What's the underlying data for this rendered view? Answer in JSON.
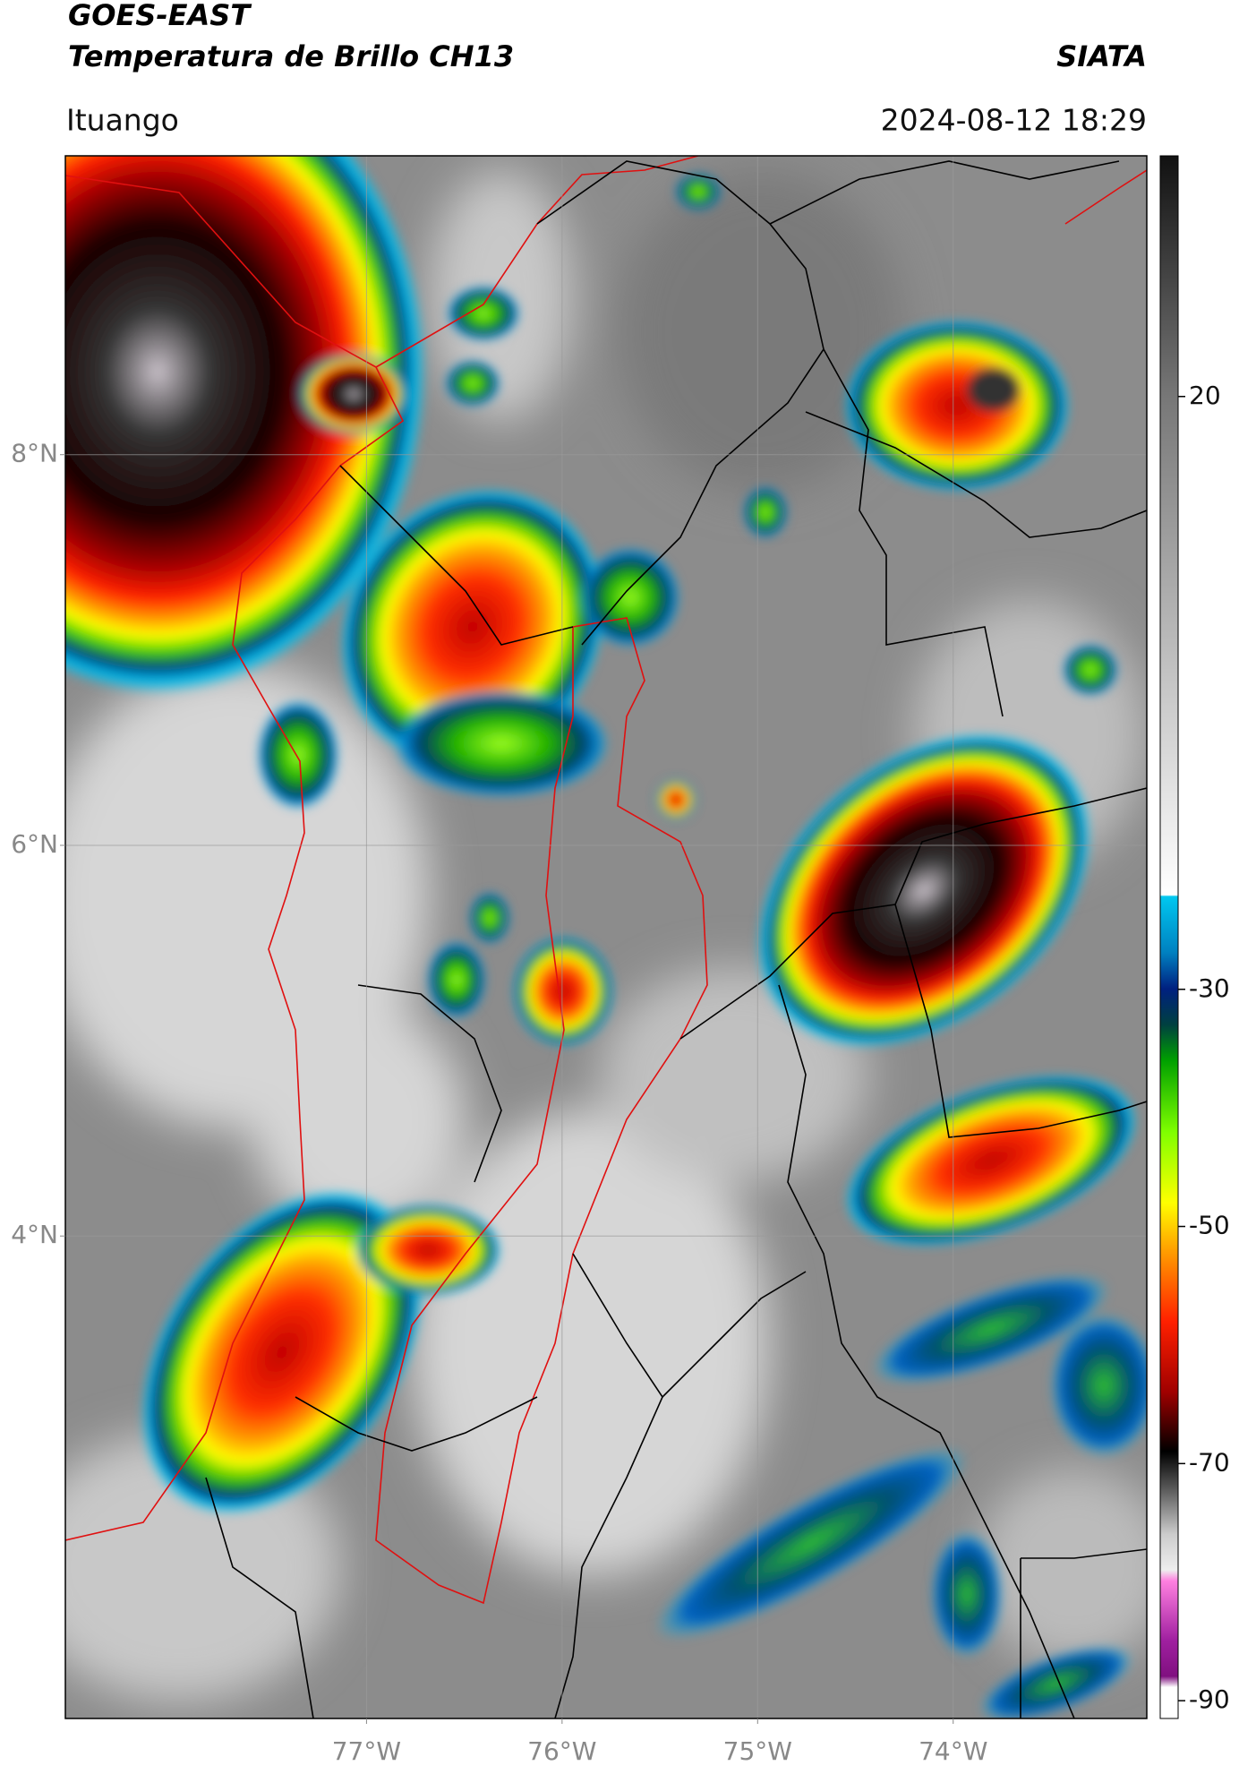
{
  "header": {
    "title": "GOES-EAST",
    "subtitle": "Temperatura de Brillo CH13",
    "source": "SIATA",
    "location": "Ituango",
    "datetime": "2024-08-12 18:29"
  },
  "map": {
    "xlim": [
      -78.54,
      -73.01
    ],
    "ylim": [
      1.53,
      9.53
    ],
    "xticks": [
      {
        "value": -77,
        "label": "77°W"
      },
      {
        "value": -76,
        "label": "76°W"
      },
      {
        "value": -75,
        "label": "75°W"
      },
      {
        "value": -74,
        "label": "74°W"
      }
    ],
    "yticks": [
      {
        "value": 8,
        "label": "8°N"
      },
      {
        "value": 6,
        "label": "6°N"
      },
      {
        "value": 4,
        "label": "4°N"
      }
    ],
    "grid": true
  },
  "colorbar": {
    "lim": [
      -91.5,
      40.3
    ],
    "ticks": [
      20,
      -30,
      -50,
      -70,
      -90
    ]
  }
}
